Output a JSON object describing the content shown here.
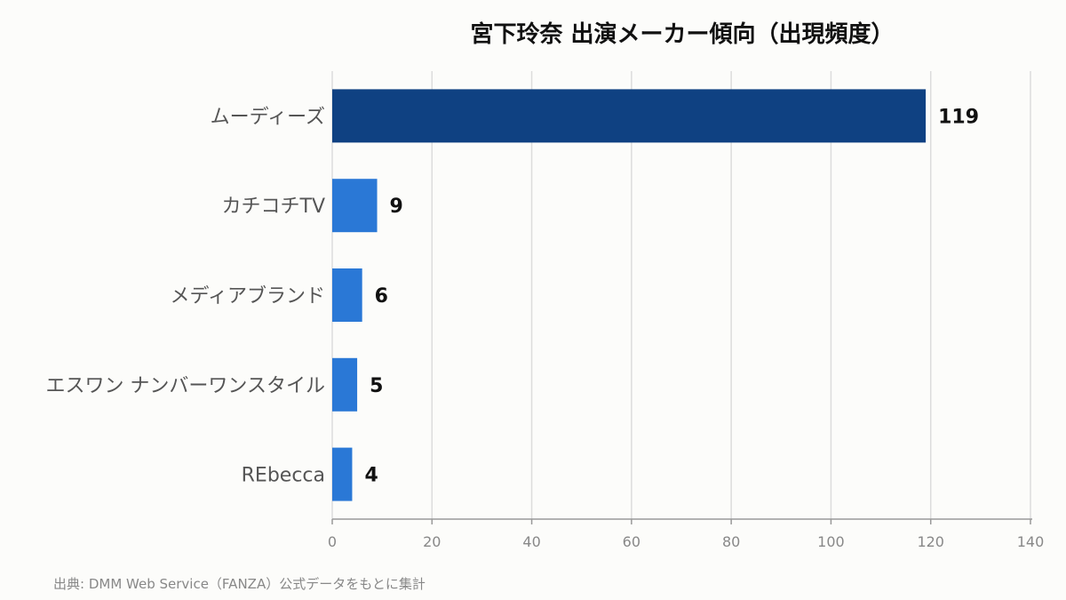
{
  "chart_data": {
    "type": "bar",
    "orientation": "horizontal",
    "title": "宮下玲奈 出演メーカー傾向（出現頻度）",
    "categories": [
      "ムーディーズ",
      "カチコチTV",
      "メディアブランド",
      "エスワン ナンバーワンスタイル",
      "REbecca"
    ],
    "values": [
      119,
      9,
      6,
      5,
      4
    ],
    "xlim": [
      0,
      140
    ],
    "xticks": [
      0,
      20,
      40,
      60,
      80,
      100,
      120,
      140
    ],
    "grid": true,
    "colors": {
      "top": "#0f4182",
      "other": "#2a78d6"
    }
  },
  "source": "出典: DMM Web Service（FANZA）公式データをもとに集計"
}
